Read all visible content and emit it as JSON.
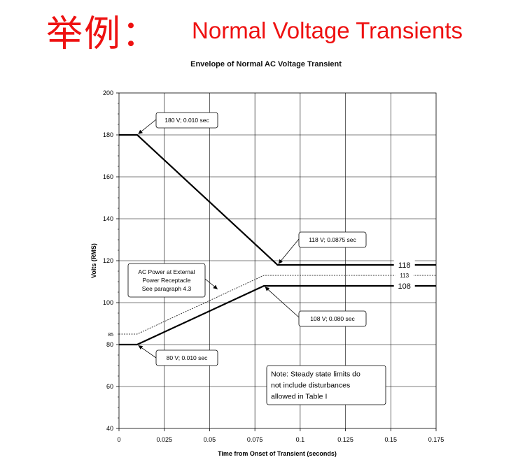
{
  "slide": {
    "title_prefix": "举例：",
    "title": "Normal Voltage Transients"
  },
  "colors": {
    "title": "#ee1111",
    "line": "#000000",
    "grid": "#000000"
  },
  "chart_data": {
    "type": "line",
    "title": "Envelope of Normal AC Voltage Transient",
    "xlabel": "Time from Onset of Transient (seconds)",
    "ylabel": "Volts (RMS)",
    "xlim": [
      0,
      0.175
    ],
    "ylim": [
      40,
      200
    ],
    "xticks": [
      0,
      0.025,
      0.05,
      0.075,
      0.1,
      0.125,
      0.15,
      0.175
    ],
    "xtick_labels": [
      "0",
      "0.025",
      "0.05",
      "0.075",
      "0.1",
      "0.125",
      "0.15",
      "0.175"
    ],
    "yticks": [
      40,
      60,
      80,
      100,
      120,
      140,
      160,
      180,
      200
    ],
    "ytick_labels": [
      "40",
      "60",
      "80",
      "100",
      "120",
      "140",
      "160",
      "180",
      "200"
    ],
    "extra_ytick": {
      "value": 85,
      "label": "85"
    },
    "grid": true,
    "series": [
      {
        "style": "thick",
        "x": [
          0,
          0.01,
          0.0875,
          0.175
        ],
        "y": [
          180,
          180,
          118,
          118
        ]
      },
      {
        "style": "thick",
        "x": [
          0,
          0.01,
          0.08,
          0.175
        ],
        "y": [
          80,
          80,
          108,
          108
        ]
      },
      {
        "style": "dashed",
        "x": [
          0,
          0.01,
          0.08,
          0.175
        ],
        "y": [
          85,
          85,
          113,
          113
        ]
      }
    ],
    "level_labels": [
      {
        "value": 118,
        "label": "118"
      },
      {
        "value": 113,
        "label": "113"
      },
      {
        "value": 108,
        "label": "108"
      }
    ],
    "annotations": [
      {
        "lines": [
          "180 V; 0.010 sec"
        ],
        "point": [
          0.01,
          180
        ]
      },
      {
        "lines": [
          "118 V; 0.0875 sec"
        ],
        "point": [
          0.0875,
          118
        ]
      },
      {
        "lines": [
          "AC Power at External",
          "Power Receptacle",
          "See paragraph 4.3"
        ],
        "point": [
          0.055,
          106
        ]
      },
      {
        "lines": [
          "108 V; 0.080 sec"
        ],
        "point": [
          0.08,
          108
        ]
      },
      {
        "lines": [
          "80 V; 0.010 sec"
        ],
        "point": [
          0.01,
          80
        ]
      },
      {
        "lines": [
          "Note: Steady state limits do",
          "not include disturbances",
          "allowed in Table I"
        ]
      }
    ]
  }
}
